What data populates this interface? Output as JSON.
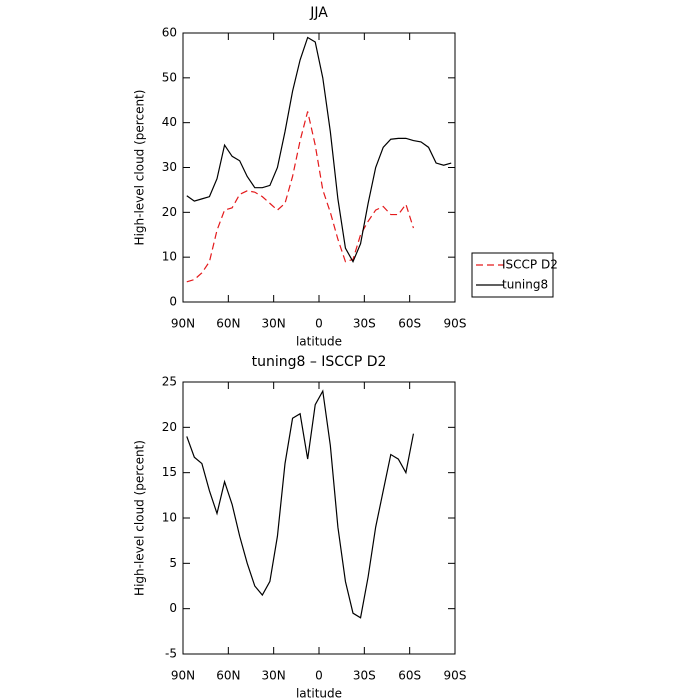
{
  "chart_data": [
    {
      "type": "line",
      "title": "JJA",
      "xlabel": "latitude",
      "ylabel": "High-level cloud (percent)",
      "x": [
        87.5,
        82.5,
        77.5,
        72.5,
        67.5,
        62.5,
        57.5,
        52.5,
        47.5,
        42.5,
        37.5,
        32.5,
        27.5,
        22.5,
        17.5,
        12.5,
        7.5,
        2.5,
        -2.5,
        -7.5,
        -12.5,
        -17.5,
        -22.5,
        -27.5,
        -32.5,
        -37.5,
        -42.5,
        -47.5,
        -52.5,
        -57.5,
        -62.5,
        -67.5,
        -72.5,
        -77.5,
        -82.5,
        -87.5
      ],
      "xlim": [
        90,
        -90
      ],
      "xticks": [
        {
          "value": 90,
          "label": "90N"
        },
        {
          "value": 60,
          "label": "60N"
        },
        {
          "value": 30,
          "label": "30N"
        },
        0,
        {
          "value": -30,
          "label": "30S"
        },
        {
          "value": -60,
          "label": "60S"
        },
        {
          "value": -90,
          "label": "90S"
        }
      ],
      "ylim": [
        0,
        60
      ],
      "yticks": [
        0,
        10,
        20,
        30,
        40,
        50,
        60
      ],
      "legend": "right",
      "series": [
        {
          "name": "ISCCP D2",
          "color": "#e41a1c",
          "linestyle": "dashed",
          "values": [
            4.5,
            5,
            6.5,
            9,
            16,
            20.5,
            21,
            24,
            24.8,
            24.5,
            23.5,
            22,
            20.5,
            22,
            28,
            36,
            42.5,
            35,
            25,
            20,
            14,
            9,
            9.5,
            15,
            18,
            20.5,
            21.3,
            19.5,
            19.5,
            21.8,
            16.5,
            null,
            null,
            null,
            null,
            null
          ]
        },
        {
          "name": "tuning8",
          "color": "#000000",
          "linestyle": "solid",
          "values": [
            23.7,
            22.5,
            23,
            23.5,
            27.5,
            35,
            32.5,
            31.5,
            28,
            25.5,
            25.5,
            26,
            30,
            38,
            47,
            54,
            59,
            58,
            50,
            38,
            23,
            12,
            9,
            13,
            22,
            30,
            34.5,
            36.3,
            36.5,
            36.5,
            36,
            35.7,
            34.5,
            31,
            30.5,
            31
          ]
        }
      ]
    },
    {
      "type": "line",
      "title": "tuning8 – ISCCP D2",
      "xlabel": "latitude",
      "ylabel": "High-level cloud (percent)",
      "x": [
        87.5,
        82.5,
        77.5,
        72.5,
        67.5,
        62.5,
        57.5,
        52.5,
        47.5,
        42.5,
        37.5,
        32.5,
        27.5,
        22.5,
        17.5,
        12.5,
        7.5,
        2.5,
        -2.5,
        -7.5,
        -12.5,
        -17.5,
        -22.5,
        -27.5,
        -32.5,
        -37.5,
        -42.5,
        -47.5,
        -52.5,
        -57.5,
        -62.5
      ],
      "xlim": [
        90,
        -90
      ],
      "xticks": [
        {
          "value": 90,
          "label": "90N"
        },
        {
          "value": 60,
          "label": "60N"
        },
        {
          "value": 30,
          "label": "30N"
        },
        0,
        {
          "value": -30,
          "label": "30S"
        },
        {
          "value": -60,
          "label": "60S"
        },
        {
          "value": -90,
          "label": "90S"
        }
      ],
      "ylim": [
        -5,
        25
      ],
      "yticks": [
        -5,
        0,
        5,
        10,
        15,
        20,
        25
      ],
      "series": [
        {
          "color": "#000000",
          "linestyle": "solid",
          "values": [
            19,
            16.7,
            16,
            13,
            10.5,
            14,
            11.5,
            8,
            5,
            2.5,
            1.5,
            3,
            8,
            16,
            21,
            21.5,
            16.5,
            22.5,
            24,
            18,
            9,
            3,
            -0.5,
            -1,
            3.5,
            9,
            13,
            17,
            16.5,
            15,
            19.3
          ]
        }
      ]
    }
  ]
}
